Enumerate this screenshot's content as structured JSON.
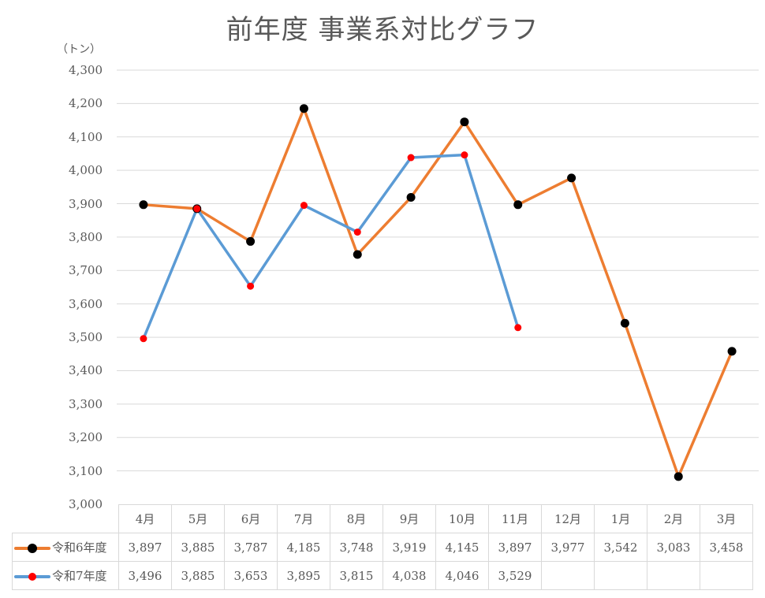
{
  "title": "前年度 事業系対比グラフ",
  "unit_label": "（トン）",
  "y_ticks": [
    "4,300",
    "4,200",
    "4,100",
    "4,000",
    "3,900",
    "3,800",
    "3,700",
    "3,600",
    "3,500",
    "3,400",
    "3,300",
    "3,200",
    "3,100",
    "3,000"
  ],
  "table": {
    "months": [
      "4月",
      "5月",
      "6月",
      "7月",
      "8月",
      "9月",
      "10月",
      "11月",
      "12月",
      "1月",
      "2月",
      "3月"
    ],
    "rows": [
      {
        "label": "令和6年度",
        "line_color": "#ED7D31",
        "marker_color": "#000000",
        "values": [
          "3,897",
          "3,885",
          "3,787",
          "4,185",
          "3,748",
          "3,919",
          "4,145",
          "3,897",
          "3,977",
          "3,542",
          "3,083",
          "3,458"
        ]
      },
      {
        "label": "令和7年度",
        "line_color": "#5B9BD5",
        "marker_color": "#FF0000",
        "values": [
          "3,496",
          "3,885",
          "3,653",
          "3,895",
          "3,815",
          "4,038",
          "4,046",
          "3,529",
          "",
          "",
          "",
          ""
        ]
      }
    ]
  },
  "chart_data": {
    "type": "line",
    "title": "前年度 事業系対比グラフ",
    "xlabel": "",
    "ylabel": "（トン）",
    "ylim": [
      3000,
      4300
    ],
    "y_tick_step": 100,
    "grid": true,
    "legend_position": "data-table",
    "categories": [
      "4月",
      "5月",
      "6月",
      "7月",
      "8月",
      "9月",
      "10月",
      "11月",
      "12月",
      "1月",
      "2月",
      "3月"
    ],
    "series": [
      {
        "name": "令和6年度",
        "color": "#ED7D31",
        "marker_color": "#000000",
        "values": [
          3897,
          3885,
          3787,
          4185,
          3748,
          3919,
          4145,
          3897,
          3977,
          3542,
          3083,
          3458
        ]
      },
      {
        "name": "令和7年度",
        "color": "#5B9BD5",
        "marker_color": "#FF0000",
        "values": [
          3496,
          3885,
          3653,
          3895,
          3815,
          4038,
          4046,
          3529,
          null,
          null,
          null,
          null
        ]
      }
    ]
  }
}
